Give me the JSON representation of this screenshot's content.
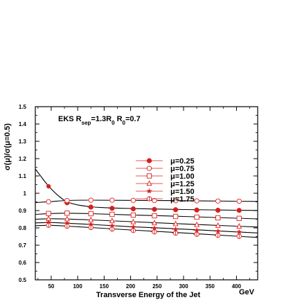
{
  "chart_data": {
    "type": "line",
    "title": "",
    "annotation": {
      "parts": [
        "EKS  R",
        "sep",
        "=1.3R",
        "0",
        "  R",
        "0",
        "=0.7"
      ]
    },
    "xlabel": "Transverse Energy of the Jet",
    "xunit": "GeV",
    "ylabel": "σ(μ)/σ(μ=0.5)",
    "xlim": [
      20,
      440
    ],
    "ylim": [
      0.5,
      1.5
    ],
    "xticks": [
      50,
      100,
      150,
      200,
      250,
      300,
      350,
      400
    ],
    "yticks": [
      0.5,
      0.6,
      0.7,
      0.8,
      0.9,
      1.0,
      1.1,
      1.2,
      1.3,
      1.4,
      1.5
    ],
    "yticklabels": [
      "0.5",
      "0.6",
      "0.7",
      "0.8",
      "0.9",
      "1",
      "1.1",
      "1.2",
      "1.3",
      "1.4",
      "1.5"
    ],
    "marker_color": "#d62020",
    "line_color": "#000000",
    "x": [
      45,
      80,
      125,
      165,
      205,
      245,
      285,
      325,
      365,
      405,
      440
    ],
    "series": [
      {
        "name": "μ=0.25",
        "marker": "filled-circle",
        "values": [
          1.04,
          0.945,
          0.92,
          0.913,
          0.91,
          0.907,
          0.905,
          0.903,
          0.902,
          0.901,
          0.901
        ]
      },
      {
        "name": "μ=0.75",
        "marker": "open-circle",
        "values": [
          0.951,
          0.958,
          0.96,
          0.96,
          0.959,
          0.958,
          0.957,
          0.956,
          0.955,
          0.954,
          0.953
        ]
      },
      {
        "name": "μ=1.00",
        "marker": "open-square",
        "values": [
          0.883,
          0.885,
          0.882,
          0.878,
          0.874,
          0.87,
          0.866,
          0.862,
          0.858,
          0.855,
          0.852
        ]
      },
      {
        "name": "μ=1.25",
        "marker": "open-triangle",
        "values": [
          0.853,
          0.851,
          0.846,
          0.84,
          0.834,
          0.828,
          0.823,
          0.818,
          0.813,
          0.809,
          0.805
        ]
      },
      {
        "name": "μ=1.50",
        "marker": "star",
        "values": [
          0.831,
          0.827,
          0.82,
          0.812,
          0.805,
          0.798,
          0.792,
          0.786,
          0.781,
          0.776,
          0.771
        ]
      },
      {
        "name": "μ=1.75",
        "marker": "crossed-circle",
        "values": [
          0.815,
          0.81,
          0.802,
          0.793,
          0.785,
          0.777,
          0.77,
          0.763,
          0.757,
          0.751,
          0.745
        ]
      }
    ],
    "curves": [
      {
        "x": [
          20,
          30,
          40,
          50,
          60,
          70,
          80,
          100,
          125,
          150,
          200,
          250,
          300,
          350,
          400,
          440
        ],
        "y": [
          1.14,
          1.1,
          1.06,
          1.025,
          0.995,
          0.97,
          0.95,
          0.933,
          0.922,
          0.917,
          0.912,
          0.909,
          0.906,
          0.904,
          0.902,
          0.901
        ]
      },
      {
        "x": [
          20,
          50,
          80,
          125,
          200,
          300,
          400,
          440
        ],
        "y": [
          0.946,
          0.952,
          0.958,
          0.96,
          0.959,
          0.957,
          0.954,
          0.953
        ]
      },
      {
        "x": [
          20,
          50,
          80,
          125,
          200,
          300,
          400,
          440
        ],
        "y": [
          0.878,
          0.883,
          0.885,
          0.882,
          0.875,
          0.866,
          0.856,
          0.852
        ]
      },
      {
        "x": [
          20,
          50,
          80,
          125,
          200,
          300,
          400,
          440
        ],
        "y": [
          0.85,
          0.853,
          0.851,
          0.846,
          0.836,
          0.823,
          0.81,
          0.805
        ]
      },
      {
        "x": [
          20,
          50,
          80,
          125,
          200,
          300,
          400,
          440
        ],
        "y": [
          0.829,
          0.831,
          0.827,
          0.82,
          0.807,
          0.793,
          0.777,
          0.771
        ]
      },
      {
        "x": [
          20,
          50,
          80,
          125,
          200,
          300,
          400,
          440
        ],
        "y": [
          0.813,
          0.815,
          0.81,
          0.802,
          0.788,
          0.771,
          0.752,
          0.745
        ]
      }
    ]
  }
}
